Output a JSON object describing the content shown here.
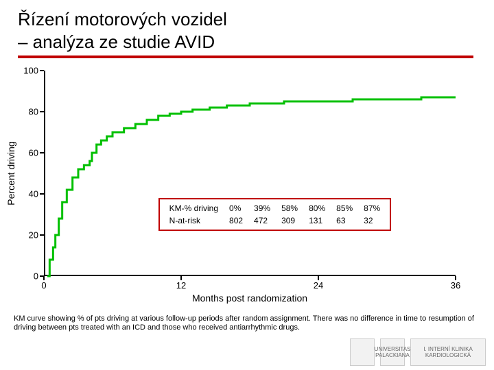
{
  "title_line1": "Řízení motorových vozidel",
  "title_line2": "– analýza ze studie AVID",
  "rule_color": "#c00000",
  "chart": {
    "type": "line",
    "ylabel": "Percent driving",
    "xlabel": "Months post randomization",
    "line_color": "#00c000",
    "line_width": 3,
    "background_color": "#ffffff",
    "xlim": [
      0,
      36
    ],
    "ylim": [
      0,
      100
    ],
    "yticks": [
      0,
      20,
      40,
      60,
      80,
      100
    ],
    "xticks": [
      0,
      12,
      24,
      36
    ],
    "points": [
      [
        0.3,
        0
      ],
      [
        0.5,
        8
      ],
      [
        0.8,
        14
      ],
      [
        1.0,
        20
      ],
      [
        1.3,
        28
      ],
      [
        1.6,
        36
      ],
      [
        2.0,
        42
      ],
      [
        2.5,
        48
      ],
      [
        3.0,
        52
      ],
      [
        3.5,
        54
      ],
      [
        4.0,
        56
      ],
      [
        4.2,
        60
      ],
      [
        4.4,
        60
      ],
      [
        4.6,
        64
      ],
      [
        5.0,
        66
      ],
      [
        5.5,
        68
      ],
      [
        6.0,
        70
      ],
      [
        7.0,
        72
      ],
      [
        8.0,
        74
      ],
      [
        9.0,
        76
      ],
      [
        10.0,
        78
      ],
      [
        11.0,
        79
      ],
      [
        12.0,
        80
      ],
      [
        13.0,
        81
      ],
      [
        14.5,
        82
      ],
      [
        16.0,
        83
      ],
      [
        18.0,
        84
      ],
      [
        21.0,
        85
      ],
      [
        24.0,
        85
      ],
      [
        27.0,
        86
      ],
      [
        30.0,
        86
      ],
      [
        33.0,
        87
      ],
      [
        36.0,
        87
      ]
    ],
    "databox": {
      "border_color": "#c00000",
      "row1_label": "KM-% driving",
      "row1_values": [
        "0%",
        "39%",
        "58%",
        "80%",
        "85%",
        "87%"
      ],
      "row2_label": "N-at-risk",
      "row2_values": [
        "802",
        "472",
        "309",
        "131",
        "63",
        "32"
      ]
    }
  },
  "caption": "KM curve showing % of pts driving at various follow-up periods after random assignment. There was no difference in time to resumption of driving between pts treated with an ICD and those who received antiarrhythmic drugs.",
  "logos": [
    "",
    "UNIVERSITAS PALACKIANA",
    "I. INTERNÍ KLINIKA KARDIOLOGICKÁ"
  ]
}
